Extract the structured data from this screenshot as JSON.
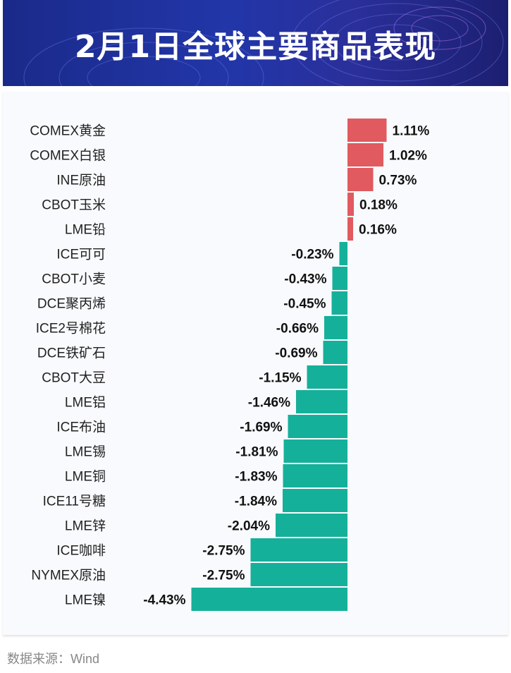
{
  "title": "2月1日全球主要商品表现",
  "source": "数据来源：Wind",
  "colors": {
    "positive": "#e05a5f",
    "negative": "#15b09a",
    "header": "#2236a8"
  },
  "chart_data": {
    "type": "bar",
    "orientation": "horizontal",
    "unit": "%",
    "categories": [
      "COMEX黄金",
      "COMEX白银",
      "INE原油",
      "CBOT玉米",
      "LME铅",
      "ICE可可",
      "CBOT小麦",
      "DCE聚丙烯",
      "ICE2号棉花",
      "DCE铁矿石",
      "CBOT大豆",
      "LME铝",
      "ICE布油",
      "LME锡",
      "LME铜",
      "ICE11号糖",
      "LME锌",
      "ICE咖啡",
      "NYMEX原油",
      "LME镍"
    ],
    "values": [
      1.11,
      1.02,
      0.73,
      0.18,
      0.16,
      -0.23,
      -0.43,
      -0.45,
      -0.66,
      -0.69,
      -1.15,
      -1.46,
      -1.69,
      -1.81,
      -1.83,
      -1.84,
      -2.04,
      -2.75,
      -2.75,
      -4.43
    ],
    "labels": [
      "1.11%",
      "1.02%",
      "0.73%",
      "0.18%",
      "0.16%",
      "-0.23%",
      "-0.43%",
      "-0.45%",
      "-0.66%",
      "-0.69%",
      "-1.15%",
      "-1.46%",
      "-1.69%",
      "-1.81%",
      "-1.83%",
      "-1.84%",
      "-2.04%",
      "-2.75%",
      "-2.75%",
      "-4.43%"
    ]
  }
}
